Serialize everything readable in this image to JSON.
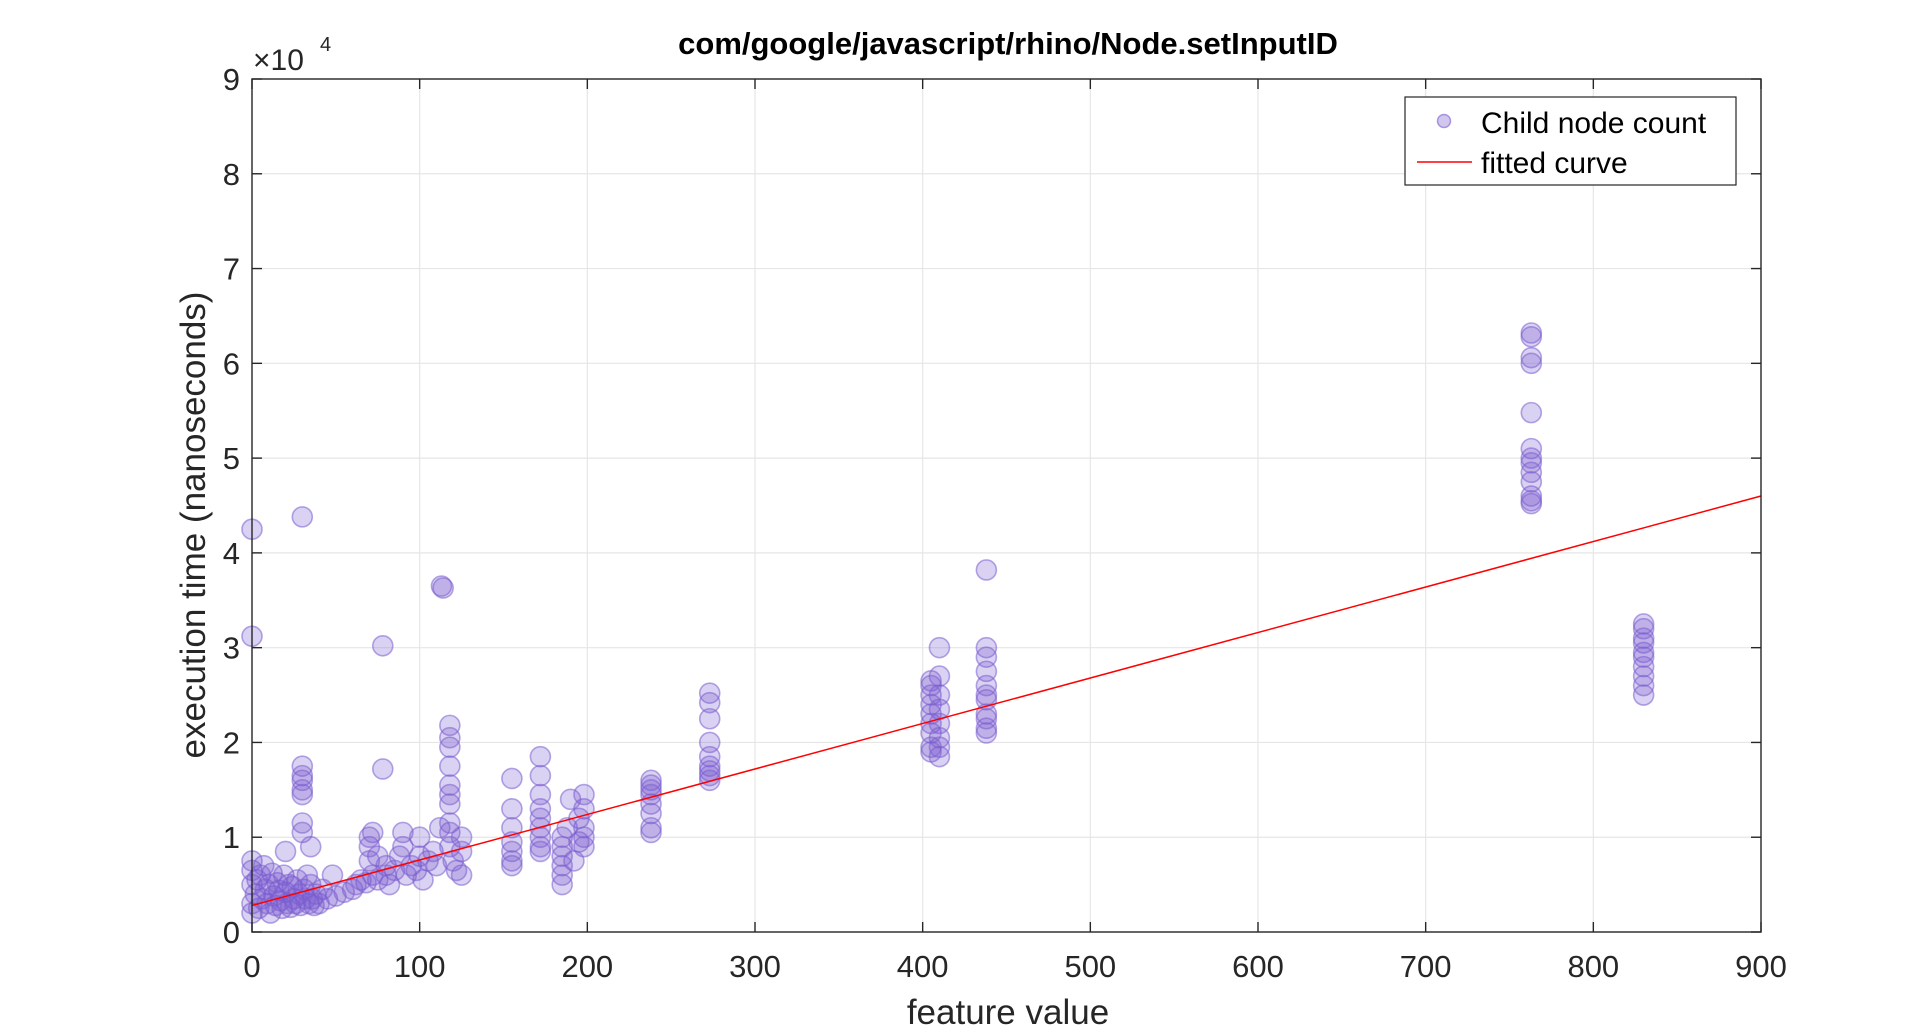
{
  "chart_data": {
    "type": "scatter",
    "title": "com/google/javascript/rhino/Node.setInputID",
    "xlabel": "feature value",
    "ylabel": "execution time (nanoseconds)",
    "y_exponent_label": "×10",
    "y_exponent_power": "4",
    "xlim": [
      0,
      900
    ],
    "ylim": [
      0,
      9
    ],
    "y_scale_factor": 10000,
    "x_ticks": [
      0,
      100,
      200,
      300,
      400,
      500,
      600,
      700,
      800,
      900
    ],
    "y_ticks": [
      0,
      1,
      2,
      3,
      4,
      5,
      6,
      7,
      8,
      9
    ],
    "grid": true,
    "legend_position": "top-right",
    "colors": {
      "points": "#7a5ccf",
      "fit": "#ff0000",
      "axes": "#262626",
      "grid": "#e6e6e6"
    },
    "series": [
      {
        "name": "Child node count",
        "kind": "scatter",
        "points": [
          [
            0,
            4.25
          ],
          [
            0,
            3.12
          ],
          [
            30,
            4.38
          ],
          [
            0,
            0.5
          ],
          [
            0,
            0.3
          ],
          [
            0,
            0.2
          ],
          [
            0,
            0.65
          ],
          [
            0,
            0.75
          ],
          [
            2,
            0.4
          ],
          [
            3,
            0.55
          ],
          [
            4,
            0.25
          ],
          [
            5,
            0.6
          ],
          [
            6,
            0.35
          ],
          [
            7,
            0.7
          ],
          [
            8,
            0.45
          ],
          [
            9,
            0.3
          ],
          [
            10,
            0.5
          ],
          [
            11,
            0.2
          ],
          [
            12,
            0.62
          ],
          [
            13,
            0.38
          ],
          [
            14,
            0.28
          ],
          [
            15,
            0.52
          ],
          [
            16,
            0.44
          ],
          [
            17,
            0.33
          ],
          [
            18,
            0.25
          ],
          [
            19,
            0.6
          ],
          [
            20,
            0.42
          ],
          [
            20,
            0.85
          ],
          [
            21,
            0.3
          ],
          [
            22,
            0.5
          ],
          [
            23,
            0.26
          ],
          [
            24,
            0.48
          ],
          [
            25,
            0.35
          ],
          [
            26,
            0.3
          ],
          [
            27,
            0.55
          ],
          [
            28,
            0.4
          ],
          [
            29,
            0.28
          ],
          [
            30,
            1.05
          ],
          [
            30,
            1.15
          ],
          [
            30,
            1.5
          ],
          [
            30,
            1.6
          ],
          [
            30,
            1.65
          ],
          [
            30,
            1.75
          ],
          [
            30,
            1.45
          ],
          [
            31,
            0.45
          ],
          [
            32,
            0.35
          ],
          [
            33,
            0.6
          ],
          [
            34,
            0.3
          ],
          [
            35,
            0.5
          ],
          [
            35,
            0.9
          ],
          [
            36,
            0.35
          ],
          [
            37,
            0.28
          ],
          [
            38,
            0.4
          ],
          [
            40,
            0.3
          ],
          [
            42,
            0.45
          ],
          [
            45,
            0.35
          ],
          [
            48,
            0.6
          ],
          [
            50,
            0.38
          ],
          [
            55,
            0.42
          ],
          [
            60,
            0.45
          ],
          [
            62,
            0.5
          ],
          [
            65,
            0.55
          ],
          [
            68,
            0.52
          ],
          [
            70,
            0.75
          ],
          [
            70,
            0.9
          ],
          [
            70,
            1.0
          ],
          [
            72,
            0.6
          ],
          [
            72,
            1.05
          ],
          [
            75,
            0.55
          ],
          [
            75,
            0.8
          ],
          [
            78,
            3.02
          ],
          [
            78,
            1.72
          ],
          [
            80,
            0.6
          ],
          [
            80,
            0.7
          ],
          [
            82,
            0.5
          ],
          [
            85,
            0.65
          ],
          [
            88,
            0.8
          ],
          [
            90,
            1.05
          ],
          [
            90,
            0.9
          ],
          [
            92,
            0.6
          ],
          [
            95,
            0.7
          ],
          [
            98,
            0.65
          ],
          [
            100,
            1.0
          ],
          [
            100,
            0.8
          ],
          [
            102,
            0.55
          ],
          [
            105,
            0.75
          ],
          [
            108,
            0.85
          ],
          [
            110,
            0.7
          ],
          [
            112,
            1.1
          ],
          [
            113,
            3.65
          ],
          [
            114,
            3.63
          ],
          [
            118,
            2.18
          ],
          [
            118,
            2.05
          ],
          [
            118,
            1.95
          ],
          [
            118,
            1.75
          ],
          [
            118,
            1.55
          ],
          [
            118,
            1.45
          ],
          [
            118,
            1.35
          ],
          [
            118,
            1.15
          ],
          [
            118,
            1.05
          ],
          [
            118,
            0.9
          ],
          [
            120,
            0.75
          ],
          [
            122,
            0.65
          ],
          [
            125,
            0.85
          ],
          [
            125,
            1.0
          ],
          [
            125,
            0.6
          ],
          [
            155,
            1.62
          ],
          [
            155,
            1.3
          ],
          [
            155,
            1.1
          ],
          [
            155,
            0.95
          ],
          [
            155,
            0.85
          ],
          [
            155,
            0.75
          ],
          [
            155,
            0.7
          ],
          [
            172,
            1.85
          ],
          [
            172,
            1.65
          ],
          [
            172,
            1.45
          ],
          [
            172,
            1.3
          ],
          [
            172,
            1.2
          ],
          [
            172,
            1.1
          ],
          [
            172,
            1.0
          ],
          [
            172,
            0.9
          ],
          [
            172,
            0.85
          ],
          [
            185,
            0.5
          ],
          [
            185,
            0.6
          ],
          [
            185,
            0.7
          ],
          [
            185,
            0.8
          ],
          [
            185,
            0.9
          ],
          [
            185,
            1.0
          ],
          [
            188,
            1.1
          ],
          [
            190,
            1.4
          ],
          [
            192,
            0.75
          ],
          [
            195,
            1.2
          ],
          [
            195,
            0.95
          ],
          [
            198,
            1.45
          ],
          [
            198,
            1.3
          ],
          [
            198,
            1.1
          ],
          [
            198,
            1.0
          ],
          [
            198,
            0.9
          ],
          [
            238,
            1.6
          ],
          [
            238,
            1.55
          ],
          [
            238,
            1.5
          ],
          [
            238,
            1.45
          ],
          [
            238,
            1.35
          ],
          [
            238,
            1.25
          ],
          [
            238,
            1.1
          ],
          [
            238,
            1.05
          ],
          [
            273,
            2.52
          ],
          [
            273,
            2.42
          ],
          [
            273,
            2.25
          ],
          [
            273,
            2.0
          ],
          [
            273,
            1.85
          ],
          [
            273,
            1.75
          ],
          [
            273,
            1.7
          ],
          [
            273,
            1.65
          ],
          [
            273,
            1.6
          ],
          [
            405,
            2.65
          ],
          [
            405,
            2.6
          ],
          [
            405,
            2.5
          ],
          [
            405,
            2.4
          ],
          [
            405,
            2.3
          ],
          [
            405,
            2.2
          ],
          [
            405,
            2.1
          ],
          [
            405,
            1.95
          ],
          [
            405,
            1.9
          ],
          [
            410,
            3.0
          ],
          [
            410,
            2.7
          ],
          [
            410,
            2.5
          ],
          [
            410,
            2.35
          ],
          [
            410,
            2.2
          ],
          [
            410,
            2.05
          ],
          [
            410,
            1.95
          ],
          [
            410,
            1.85
          ],
          [
            438,
            3.82
          ],
          [
            438,
            3.0
          ],
          [
            438,
            2.9
          ],
          [
            438,
            2.75
          ],
          [
            438,
            2.6
          ],
          [
            438,
            2.5
          ],
          [
            438,
            2.45
          ],
          [
            438,
            2.3
          ],
          [
            438,
            2.25
          ],
          [
            438,
            2.15
          ],
          [
            438,
            2.1
          ],
          [
            763,
            6.32
          ],
          [
            763,
            6.28
          ],
          [
            763,
            6.06
          ],
          [
            763,
            6.0
          ],
          [
            763,
            5.48
          ],
          [
            763,
            5.1
          ],
          [
            763,
            5.0
          ],
          [
            763,
            4.95
          ],
          [
            763,
            4.85
          ],
          [
            763,
            4.75
          ],
          [
            763,
            4.6
          ],
          [
            763,
            4.55
          ],
          [
            763,
            4.52
          ],
          [
            830,
            3.25
          ],
          [
            830,
            3.2
          ],
          [
            830,
            3.1
          ],
          [
            830,
            3.05
          ],
          [
            830,
            2.95
          ],
          [
            830,
            2.9
          ],
          [
            830,
            2.8
          ],
          [
            830,
            2.7
          ],
          [
            830,
            2.6
          ],
          [
            830,
            2.5
          ]
        ]
      },
      {
        "name": "fitted curve",
        "kind": "line",
        "points": [
          [
            0,
            0.28
          ],
          [
            900,
            4.6
          ]
        ]
      }
    ]
  }
}
